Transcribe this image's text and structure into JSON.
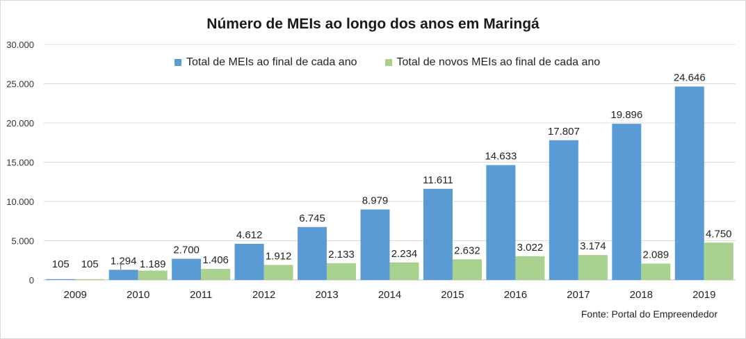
{
  "chart_data": {
    "type": "bar",
    "title": "Número de MEIs ao longo dos anos em Maringá",
    "categories": [
      "2009",
      "2010",
      "2011",
      "2012",
      "2013",
      "2014",
      "2015",
      "2016",
      "2017",
      "2018",
      "2019"
    ],
    "series": [
      {
        "name": "Total de MEIs ao final de cada ano",
        "color": "#5B9BD5",
        "values": [
          105,
          1294,
          2700,
          4612,
          6745,
          8979,
          11611,
          14633,
          17807,
          19896,
          24646
        ],
        "labels": [
          "105",
          "1.294",
          "2.700",
          "4.612",
          "6.745",
          "8.979",
          "11.611",
          "14.633",
          "17.807",
          "19.896",
          "24.646"
        ]
      },
      {
        "name": "Total de novos MEIs ao final de cada ano",
        "color": "#A9D18E",
        "values": [
          105,
          1189,
          1406,
          1912,
          2133,
          2234,
          2632,
          3022,
          3174,
          2089,
          4750
        ],
        "labels": [
          "105",
          "1.189",
          "1.406",
          "1.912",
          "2.133",
          "2.234",
          "2.632",
          "3.022",
          "3.174",
          "2.089",
          "4.750"
        ]
      }
    ],
    "ylim": [
      0,
      30000
    ],
    "yticks": [
      0,
      5000,
      10000,
      15000,
      20000,
      25000,
      30000
    ],
    "ytick_labels": [
      "0",
      "5.000",
      "10.000",
      "15.000",
      "20.000",
      "25.000",
      "30.000"
    ],
    "grid": true,
    "legend_position": "top-center",
    "xlabel": "",
    "ylabel": ""
  },
  "source": "Fonte: Portal do Empreendedor"
}
